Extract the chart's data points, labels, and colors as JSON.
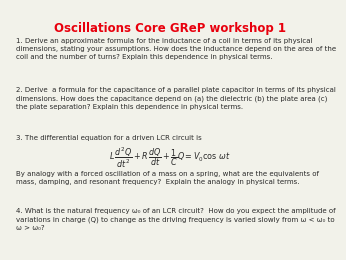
{
  "title": "Oscillations Core GReP workshop 1",
  "title_color": "#e8000d",
  "bg_color": "#f2f2ea",
  "text_color": "#2a2a2a",
  "q1": "1. Derive an approximate formula for the inductance of a coil in terms of its physical\ndimensions, stating your assumptions. How does the inductance depend on the area of the\ncoil and the number of turns? Explain this dependence in physical terms.",
  "q2": "2. Derive  a formula for the capacitance of a parallel plate capacitor in terms of its physical\ndimensions. How does the capacitance depend on (a) the dielectric (b) the plate area (c)\nthe plate separation? Explain this dependence in physical terms.",
  "q3_intro": "3. The differential equation for a driven LCR circuit is",
  "q3_eq": "$L\\,\\dfrac{d^2Q}{dt^2} + R\\,\\dfrac{dQ}{dt} + \\dfrac{1}{C}Q = V_0 \\cos\\,\\omega t$",
  "q3_followup": "By analogy with a forced oscillation of a mass on a spring, what are the equivalents of\nmass, damping, and resonant frequency?  Explain the analogy in physical terms.",
  "q4": "4. What is the natural frequency ω₀ of an LCR circuit?  How do you expect the amplitude of\nvariations in charge (Q) to change as the driving frequency is varied slowly from ω < ω₀ to\nω > ω₀?"
}
